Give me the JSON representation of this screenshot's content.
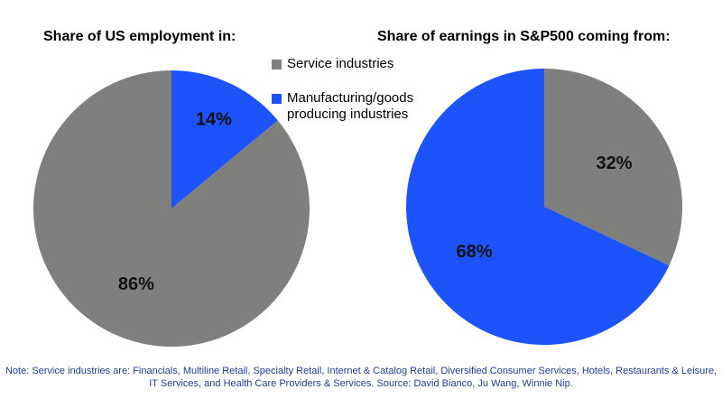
{
  "colors": {
    "service": "#7f7f7d",
    "manufacturing": "#1d53fb",
    "note": "#1f3c99"
  },
  "legend": {
    "service_label": "Service industries",
    "manufacturing_label": "Manufacturing/goods producing industries"
  },
  "note": "Note: Service industries are: Financials, Multiline Retail, Specialty Retail, Internet & Catalog Retail, Diversified Consumer Services, Hotels, Restaurants & Leisure, IT Services, and Health Care Providers & Services. Source: David Bianco, Ju Wang, Winnie Nip.",
  "chart_data": [
    {
      "type": "pie",
      "title": "Share of US employment in:",
      "slices": [
        {
          "label": "Service industries",
          "value": 86,
          "display": "86%",
          "color": "#7f7f7d"
        },
        {
          "label": "Manufacturing/goods producing industries",
          "value": 14,
          "display": "14%",
          "color": "#1d53fb"
        }
      ]
    },
    {
      "type": "pie",
      "title": "Share of earnings in S&P500 coming from:",
      "slices": [
        {
          "label": "Service industries",
          "value": 32,
          "display": "32%",
          "color": "#7f7f7d"
        },
        {
          "label": "Manufacturing/goods producing industries",
          "value": 68,
          "display": "68%",
          "color": "#1d53fb"
        }
      ]
    }
  ]
}
